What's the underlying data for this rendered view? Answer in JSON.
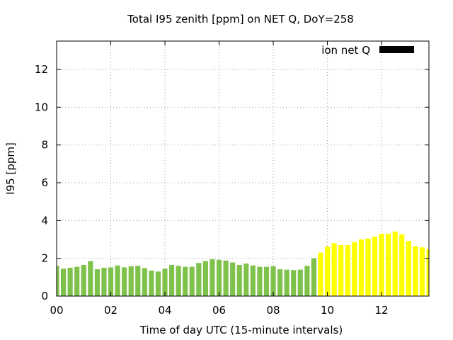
{
  "chart_data": {
    "type": "bar",
    "title": "Total I95 zenith [ppm] on NET Q, DoY=258",
    "xlabel": "Time of day UTC (15-minute intervals)",
    "ylabel": "I95 [ppm]",
    "xlim": [
      0,
      13.75
    ],
    "ylim": [
      0,
      13.5
    ],
    "x_ticks": [
      "00",
      "02",
      "04",
      "06",
      "08",
      "10",
      "12"
    ],
    "x_tick_values": [
      0,
      2,
      4,
      6,
      8,
      10,
      12
    ],
    "y_ticks": [
      "0",
      "2",
      "4",
      "6",
      "8",
      "10",
      "12"
    ],
    "y_tick_values": [
      0,
      2,
      4,
      6,
      8,
      10,
      12
    ],
    "grid": true,
    "legend": {
      "position": "top-right",
      "entries": [
        {
          "label": "ion net Q",
          "color": "#000000"
        }
      ]
    },
    "interval_hours": 0.25,
    "series": [
      {
        "colors": {
          "green": "#7fc24b",
          "yellow": "#ffff00"
        },
        "color_split_index": 39,
        "values": [
          1.6,
          1.45,
          1.5,
          1.55,
          1.65,
          1.85,
          1.42,
          1.5,
          1.52,
          1.62,
          1.52,
          1.58,
          1.6,
          1.48,
          1.35,
          1.3,
          1.45,
          1.65,
          1.6,
          1.55,
          1.55,
          1.75,
          1.85,
          1.95,
          1.92,
          1.88,
          1.78,
          1.65,
          1.72,
          1.62,
          1.55,
          1.55,
          1.58,
          1.42,
          1.4,
          1.38,
          1.4,
          1.6,
          2.0,
          2.3,
          2.62,
          2.8,
          2.7,
          2.7,
          2.85,
          3.0,
          3.05,
          3.15,
          3.3,
          3.3,
          3.42,
          3.27,
          2.92,
          2.65,
          2.58,
          2.5
        ]
      }
    ]
  }
}
